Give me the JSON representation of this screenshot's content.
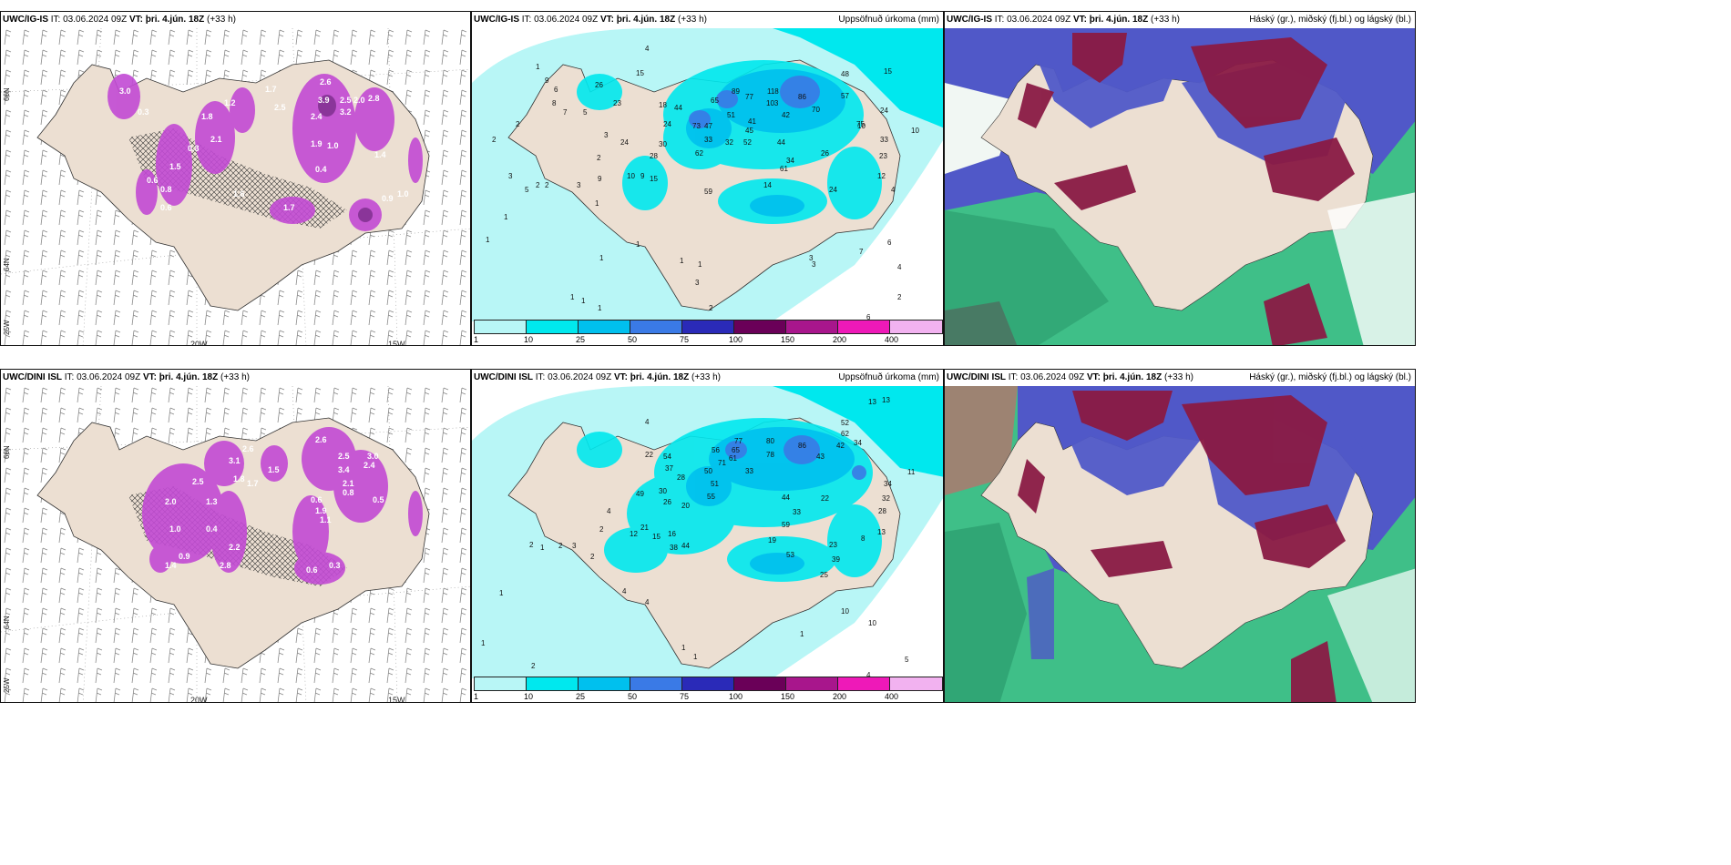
{
  "rows": [
    {
      "model": "UWC/IG-IS",
      "it_label": "IT:",
      "it_value": "03.06.2024 09Z",
      "vt_label": "VT:",
      "vt_value": "þri. 4.jún. 18Z",
      "lead": "(+33 h)",
      "precip_numbers": [
        "4",
        "15",
        "10",
        "26",
        "23",
        "1",
        "9",
        "6",
        "8",
        "2",
        "5",
        "7",
        "18",
        "44",
        "65",
        "89",
        "77",
        "118",
        "103",
        "86",
        "48",
        "57",
        "70",
        "10",
        "42",
        "73",
        "47",
        "51",
        "41",
        "24",
        "30",
        "28",
        "33",
        "32",
        "52",
        "62",
        "45",
        "44",
        "75",
        "33",
        "3",
        "9",
        "10",
        "9",
        "15",
        "34",
        "26",
        "24",
        "23",
        "1",
        "2",
        "2",
        "3",
        "5",
        "59",
        "61",
        "14",
        "24",
        "12",
        "4",
        "24",
        "3",
        "2",
        "1",
        "1",
        "1",
        "1",
        "1",
        "2",
        "3",
        "1",
        "1",
        "1",
        "3",
        "4",
        "7",
        "6",
        "2",
        "6",
        "15",
        "1",
        "2",
        "3"
      ],
      "precip_white_numbers": [
        "2.6",
        "3.9",
        "2.5",
        "3.2",
        "2.0",
        "2.4",
        "2.8",
        "1.9",
        "1.0",
        "1.4",
        "0.9",
        "1.0",
        "0.4",
        "3.0",
        "1.8",
        "1.2",
        "0.3",
        "2.1",
        "1.5",
        "0.6",
        "0.8",
        "1.6",
        "1.7",
        "2.5",
        "0.3",
        "0.6",
        "1.7"
      ]
    },
    {
      "model": "UWC/DINI ISL",
      "it_label": "IT:",
      "it_value": "03.06.2024 09Z",
      "vt_label": "VT:",
      "vt_value": "þri. 4.jún. 18Z",
      "lead": "(+33 h)",
      "precip_numbers": [
        "4",
        "13",
        "13",
        "11",
        "52",
        "34",
        "42",
        "62",
        "86",
        "43",
        "80",
        "78",
        "77",
        "65",
        "61",
        "56",
        "71",
        "50",
        "54",
        "37",
        "28",
        "33",
        "22",
        "51",
        "55",
        "49",
        "30",
        "20",
        "26",
        "21",
        "15",
        "12",
        "16",
        "38",
        "44",
        "44",
        "22",
        "33",
        "59",
        "19",
        "23",
        "53",
        "39",
        "25",
        "8",
        "10",
        "13",
        "28",
        "32",
        "34",
        "4",
        "4",
        "4",
        "2",
        "3",
        "2",
        "2",
        "1",
        "1",
        "2",
        "1",
        "4",
        "10",
        "5",
        "1",
        "1",
        "2",
        "1",
        "1",
        "2"
      ],
      "precip_white_numbers": [
        "2.6",
        "3.1",
        "2.5",
        "3.4",
        "2.4",
        "3.0",
        "2.1",
        "1.9",
        "0.8",
        "0.5",
        "0.6",
        "1.1",
        "2.5",
        "1.3",
        "0.4",
        "1.8",
        "1.0",
        "2.2",
        "1.7",
        "0.9",
        "2.8",
        "1.4",
        "2.6",
        "1.5",
        "2.0",
        "0.6",
        "0.3"
      ]
    }
  ],
  "precip_panel": {
    "right_title": "Uppsöfnuð úrkoma (mm)",
    "colorbar_labels": [
      "1",
      "10",
      "25",
      "50",
      "75",
      "100",
      "150",
      "200",
      "400"
    ],
    "colorbar_colors": [
      "#b8f6f6",
      "#00e8ee",
      "#00c0ee",
      "#3a7ae6",
      "#2a2ab8",
      "#6a0058",
      "#a8168c",
      "#ee19b8",
      "#f2b2f0"
    ]
  },
  "cloud_panel": {
    "right_title": "Háský (gr.), miðský (fj.bl.) og lágský (bl.)"
  },
  "wind_panel": {
    "lon_labels": [
      "20W",
      "15W"
    ],
    "lat_labels": [
      "66N",
      "64N",
      "25W"
    ]
  },
  "colors": {
    "land": "#ecdfd2",
    "precip_light": "#b8f6f6",
    "precip_mid": "#00e8ee",
    "high_cloud": "#8a1a44",
    "mid_cloud": "#5058c8",
    "low_cloud": "#3fbf88",
    "magenta": "#c24ad4"
  }
}
